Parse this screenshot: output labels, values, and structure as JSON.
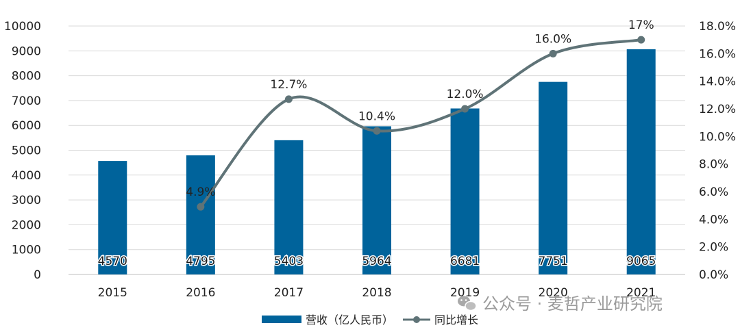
{
  "chart_data": {
    "type": "bar",
    "categories": [
      "2015",
      "2016",
      "2017",
      "2018",
      "2019",
      "2020",
      "2021"
    ],
    "series": [
      {
        "name": "营收（亿人民币）",
        "kind": "bar",
        "axis": "left",
        "values": [
          4570,
          4795,
          5403,
          5964,
          6681,
          7751,
          9065
        ],
        "labels": [
          "4570",
          "4795",
          "5403",
          "5964",
          "6681",
          "7751",
          "9065"
        ],
        "color": "#00639b"
      },
      {
        "name": "同比增长",
        "kind": "line",
        "axis": "right",
        "values": [
          null,
          4.9,
          12.7,
          10.4,
          12.0,
          16.0,
          17.0
        ],
        "labels": [
          "",
          "4.9%",
          "12.7%",
          "10.4%",
          "12.0%",
          "16.0%",
          "17%"
        ],
        "color": "#5f7377"
      }
    ],
    "y_left": {
      "min": 0,
      "max": 10000,
      "ticks": [
        "0",
        "1000",
        "2000",
        "3000",
        "4000",
        "5000",
        "6000",
        "7000",
        "8000",
        "9000",
        "10000"
      ]
    },
    "y_right": {
      "min": 0,
      "max": 18,
      "ticks": [
        "0.0%",
        "2.0%",
        "4.0%",
        "6.0%",
        "8.0%",
        "10.0%",
        "12.0%",
        "14.0%",
        "16.0%",
        "18.0%"
      ]
    },
    "grid": true,
    "legend": "bottom"
  },
  "watermark": {
    "text": "公众号 · 麦哲产业研究院",
    "icon": "wechat-icon"
  }
}
